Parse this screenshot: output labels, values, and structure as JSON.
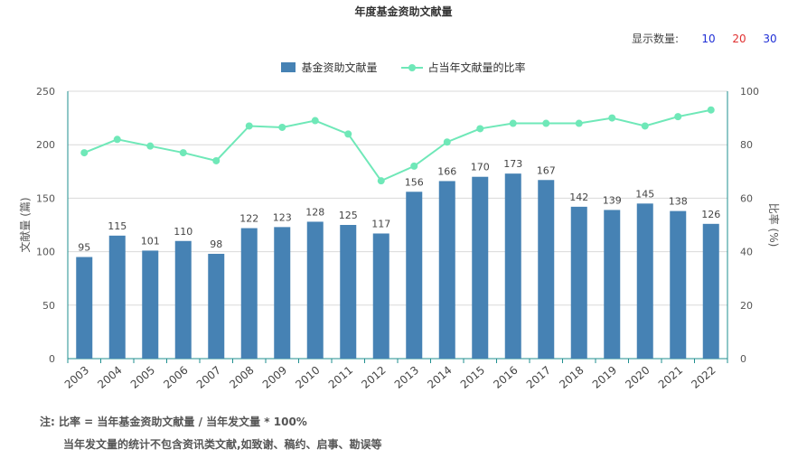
{
  "title": "年度基金资助文献量",
  "display_count": {
    "label": "显示数量:",
    "options": [
      {
        "label": "10",
        "color": "#1f2fd6"
      },
      {
        "label": "20",
        "color": "#e03030"
      },
      {
        "label": "30",
        "color": "#1f2fd6"
      }
    ]
  },
  "notes": {
    "line1": "注:  比率 = 当年基金资助文献量 / 当年发文量 * 100%",
    "line2": "当年发文量的统计不包含资讯类文献,如致谢、稿约、启事、勘误等"
  },
  "chart_data": {
    "type": "bar",
    "title": "年度基金资助文献量",
    "categories": [
      "2003",
      "2004",
      "2005",
      "2006",
      "2007",
      "2008",
      "2009",
      "2010",
      "2011",
      "2012",
      "2013",
      "2014",
      "2015",
      "2016",
      "2017",
      "2018",
      "2019",
      "2020",
      "2021",
      "2022"
    ],
    "series": [
      {
        "name": "基金资助文献量",
        "type": "bar",
        "color": "#4682b4",
        "axis": "left",
        "values": [
          95,
          115,
          101,
          110,
          98,
          122,
          123,
          128,
          125,
          117,
          156,
          166,
          170,
          173,
          167,
          142,
          139,
          145,
          138,
          126
        ]
      },
      {
        "name": "占当年文献量的比率",
        "type": "line",
        "color": "#6fe8b8",
        "axis": "right",
        "values": [
          77,
          82,
          79.5,
          77,
          74,
          87,
          86.5,
          89,
          84,
          66.5,
          72,
          81,
          86,
          88,
          88,
          88,
          90,
          87,
          90.5,
          93
        ]
      }
    ],
    "ylabel": "文献量 (篇)",
    "ylabel_right": "比率 (%)",
    "ylim": [
      0,
      250
    ],
    "yticks": [
      0,
      50,
      100,
      150,
      200,
      250
    ],
    "ylim_right": [
      0,
      100
    ],
    "yticks_right": [
      0,
      20,
      40,
      60,
      80,
      100
    ],
    "grid": true,
    "legend_position": "top-center",
    "data_labels": true
  }
}
